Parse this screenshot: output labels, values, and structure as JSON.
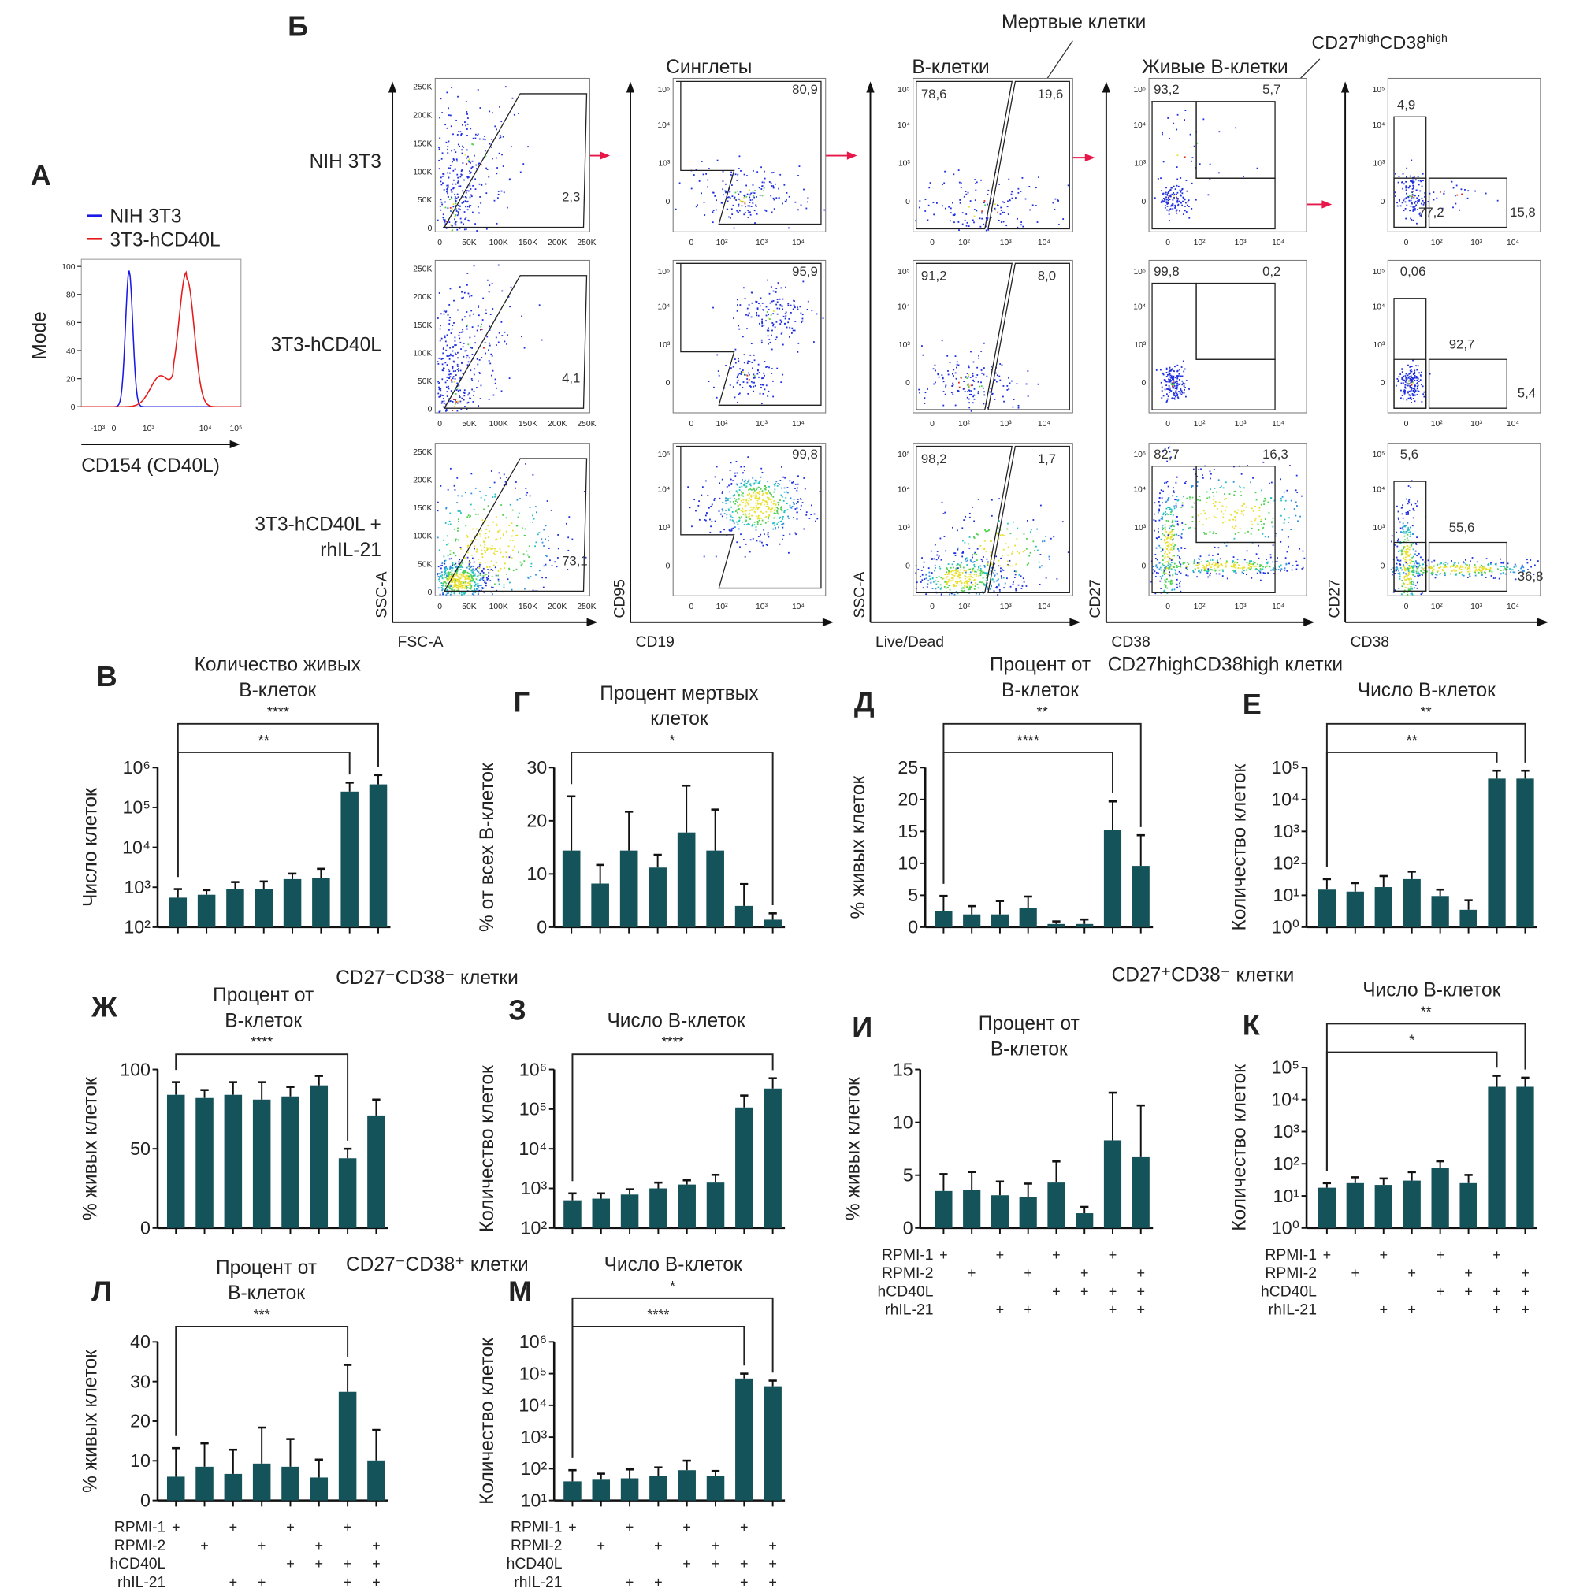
{
  "panel_letters": {
    "A": "А",
    "B": "Б",
    "V": "В",
    "G": "Г",
    "D": "Д",
    "E": "Е",
    "ZH": "Ж",
    "Z": "З",
    "I": "И",
    "K": "К",
    "L": "Л",
    "M": "М"
  },
  "histogram": {
    "type": "line",
    "ylabel": "Mode",
    "xlabel": "CD154 (CD40L)",
    "yticks": [
      "0",
      "20",
      "40",
      "60",
      "80",
      "100"
    ],
    "xticks": [
      "-10³",
      "0",
      "10³",
      "10⁴",
      "10⁵"
    ],
    "series": [
      {
        "name": "NIH 3T3",
        "color": "#1a1ae6",
        "peak_mode": 97
      },
      {
        "name": "3T3-hCD40L",
        "color": "#e61a1a",
        "peak_mode": 90
      }
    ]
  },
  "flow": {
    "row_labels": [
      "NIH 3T3",
      "3T3-hCD40L",
      "3T3-hCD40L +",
      "rhIL-21"
    ],
    "column_headers": [
      "Синглеты",
      "В-клетки",
      "Живые В-клетки",
      "CD27highCD38high"
    ],
    "dead_label": "Мертвые клетки",
    "cd27hi_parts": [
      "CD27",
      "high",
      "CD38",
      "high"
    ],
    "subset_labels": [
      [
        "CD27",
        "+",
        "CD38",
        "-"
      ],
      [
        "CD27",
        "-",
        "CD38",
        "-"
      ],
      [
        "CD27",
        "-",
        "CD38",
        "+"
      ]
    ],
    "axes": [
      {
        "x": "FSC-A",
        "y": "SSC-A"
      },
      {
        "x": "CD19",
        "y": "CD95"
      },
      {
        "x": "Live/Dead",
        "y": "SSC-A"
      },
      {
        "x": "CD38",
        "y": "CD27"
      },
      {
        "x": "CD38",
        "y": "CD27"
      }
    ],
    "scatter_ticks": [
      "0",
      "50K",
      "100K",
      "150K",
      "200K",
      "250K"
    ],
    "log_ticks": [
      "0",
      "10²",
      "10³",
      "10⁴",
      "10⁵"
    ],
    "percentages": [
      [
        [
          "2,3"
        ],
        [
          "80,9"
        ],
        [
          "78,6",
          "19,6"
        ],
        [
          "93,2",
          "5,7"
        ],
        [
          "4,9",
          "77,2",
          "15,8"
        ]
      ],
      [
        [
          "4,1"
        ],
        [
          "95,9"
        ],
        [
          "91,2",
          "8,0"
        ],
        [
          "99,8",
          "0,2"
        ],
        [
          "0,06",
          "92,7",
          "5,4"
        ]
      ],
      [
        [
          "73,1"
        ],
        [
          "99,8"
        ],
        [
          "98,2",
          "1,7"
        ],
        [
          "82,7",
          "16,3"
        ],
        [
          "5,6",
          "55,6",
          "36,8"
        ]
      ]
    ],
    "arrow_color": "#e8174a",
    "dot_color": "#1f2fe0"
  },
  "group_headers": {
    "cd27hi_cd38hi": "CD27highCD38high клетки",
    "cd27neg_cd38neg": "CD27⁻CD38⁻ клетки",
    "cd27pos_cd38neg": "CD27⁺CD38⁻ клетки",
    "cd27neg_cd38pos": "CD27⁻CD38⁺ клетки"
  },
  "conditions": {
    "rows": [
      "RPMI-1",
      "RPMI-2",
      "hCD40L",
      "rhIL-21"
    ],
    "plus": [
      [
        1,
        0,
        1,
        0,
        1,
        0,
        1,
        0
      ],
      [
        0,
        1,
        0,
        1,
        0,
        1,
        0,
        1
      ],
      [
        0,
        0,
        0,
        0,
        1,
        1,
        1,
        1
      ],
      [
        0,
        0,
        1,
        1,
        0,
        0,
        1,
        1
      ]
    ],
    "mark": "+"
  },
  "chart_data": [
    {
      "id": "V",
      "type": "bar",
      "title": [
        "Количество живых",
        "В-клеток"
      ],
      "ylabel": "Число клеток",
      "scale": "log",
      "ylim": [
        100,
        1000000
      ],
      "yticks": [
        "10²",
        "10³",
        "10⁴",
        "10⁵",
        "10⁶"
      ],
      "values": [
        550,
        650,
        900,
        900,
        1600,
        1700,
        250000,
        380000
      ],
      "error_upper": [
        900,
        850,
        1350,
        1400,
        2200,
        2900,
        420000,
        650000
      ],
      "significance": [
        {
          "from": 1,
          "to": 7,
          "label": "**"
        },
        {
          "from": 1,
          "to": 8,
          "label": "****"
        }
      ],
      "bar_color": "#15535a"
    },
    {
      "id": "G",
      "type": "bar",
      "title": [
        "Процент мертвых",
        "клеток"
      ],
      "ylabel": "% от всех В-клеток",
      "scale": "linear",
      "ylim": [
        0,
        30
      ],
      "yticks": [
        "0",
        "10",
        "20",
        "30"
      ],
      "values": [
        14.4,
        8.2,
        14.4,
        11.2,
        17.8,
        14.4,
        4.0,
        1.4
      ],
      "error_upper": [
        24.6,
        11.7,
        21.7,
        13.6,
        26.6,
        22.1,
        8.1,
        2.6
      ],
      "significance": [
        {
          "from": 1,
          "to": 8,
          "label": "*"
        }
      ],
      "bar_color": "#15535a"
    },
    {
      "id": "D",
      "type": "bar",
      "title": [
        "Процент от",
        "В-клеток"
      ],
      "ylabel": "% живых клеток",
      "scale": "linear",
      "ylim": [
        0,
        25
      ],
      "yticks": [
        "0",
        "5",
        "10",
        "15",
        "20",
        "25"
      ],
      "values": [
        2.5,
        2.0,
        2.0,
        3.0,
        0.5,
        0.5,
        15.2,
        9.6
      ],
      "error_upper": [
        4.9,
        3.3,
        4.1,
        4.8,
        0.9,
        1.2,
        19.7,
        14.4
      ],
      "significance": [
        {
          "from": 1,
          "to": 7,
          "label": "****"
        },
        {
          "from": 1,
          "to": 8,
          "label": "**"
        }
      ],
      "bar_color": "#15535a"
    },
    {
      "id": "E",
      "type": "bar",
      "title": [
        "Число В-клеток"
      ],
      "ylabel": "Количество клеток",
      "scale": "log",
      "ylim": [
        1,
        100000
      ],
      "yticks": [
        "10⁰",
        "10¹",
        "10²",
        "10³",
        "10⁴",
        "10⁵"
      ],
      "values": [
        15,
        13,
        18,
        32,
        9.5,
        3.5,
        45000,
        45000
      ],
      "error_upper": [
        32,
        24,
        40,
        55,
        15,
        7,
        80000,
        80000
      ],
      "significance": [
        {
          "from": 1,
          "to": 7,
          "label": "**"
        },
        {
          "from": 1,
          "to": 8,
          "label": "**"
        }
      ],
      "bar_color": "#15535a"
    },
    {
      "id": "ZH",
      "type": "bar",
      "title": [
        "Процент от",
        "В-клеток"
      ],
      "ylabel": "% живых клеток",
      "scale": "linear",
      "ylim": [
        0,
        100
      ],
      "yticks": [
        "0",
        "50",
        "100"
      ],
      "values": [
        84,
        82,
        84,
        81,
        83,
        90,
        44,
        71
      ],
      "error_upper": [
        92,
        87,
        92,
        92,
        89,
        96,
        50,
        81
      ],
      "significance": [
        {
          "from": 1,
          "to": 7,
          "label": "****"
        }
      ],
      "bar_color": "#15535a"
    },
    {
      "id": "Z",
      "type": "bar",
      "title": [
        "Число В-клеток"
      ],
      "ylabel": "Количество клеток",
      "scale": "log",
      "ylim": [
        100,
        1000000
      ],
      "yticks": [
        "10²",
        "10³",
        "10⁴",
        "10⁵",
        "10⁶"
      ],
      "values": [
        500,
        550,
        700,
        1000,
        1250,
        1400,
        110000,
        330000
      ],
      "error_upper": [
        750,
        750,
        950,
        1400,
        1600,
        2200,
        220000,
        600000
      ],
      "significance": [
        {
          "from": 1,
          "to": 8,
          "label": "****"
        }
      ],
      "bar_color": "#15535a"
    },
    {
      "id": "I",
      "type": "bar",
      "title": [
        "Процент от",
        "В-клеток"
      ],
      "ylabel": "% живых клеток",
      "scale": "linear",
      "ylim": [
        0,
        15
      ],
      "yticks": [
        "0",
        "5",
        "10",
        "15"
      ],
      "values": [
        3.5,
        3.6,
        3.1,
        2.9,
        4.3,
        1.4,
        8.3,
        6.7
      ],
      "error_upper": [
        5.1,
        5.3,
        4.4,
        4.2,
        6.3,
        2.0,
        12.8,
        11.6
      ],
      "significance": [],
      "bar_color": "#15535a"
    },
    {
      "id": "K",
      "type": "bar",
      "title": [
        "Число В-клеток"
      ],
      "ylabel": "Количество клеток",
      "scale": "log",
      "ylim": [
        1,
        100000
      ],
      "yticks": [
        "10⁰",
        "10¹",
        "10²",
        "10³",
        "10⁴",
        "10⁵"
      ],
      "values": [
        18,
        25,
        22,
        30,
        75,
        25,
        25000,
        25000
      ],
      "error_upper": [
        25,
        38,
        35,
        55,
        120,
        45,
        55000,
        48000
      ],
      "significance": [
        {
          "from": 1,
          "to": 7,
          "label": "*"
        },
        {
          "from": 1,
          "to": 8,
          "label": "**"
        }
      ],
      "bar_color": "#15535a"
    },
    {
      "id": "L",
      "type": "bar",
      "title": [
        "Процент от",
        "В-клеток"
      ],
      "ylabel": "% живых клеток",
      "scale": "linear",
      "ylim": [
        0,
        40
      ],
      "yticks": [
        "0",
        "10",
        "20",
        "30",
        "40"
      ],
      "values": [
        6.0,
        8.5,
        6.7,
        9.3,
        8.5,
        5.8,
        27.4,
        10.1
      ],
      "error_upper": [
        13.2,
        14.4,
        12.8,
        18.4,
        15.5,
        10.3,
        34.2,
        17.8
      ],
      "significance": [
        {
          "from": 1,
          "to": 7,
          "label": "***"
        }
      ],
      "bar_color": "#15535a"
    },
    {
      "id": "M",
      "type": "bar",
      "title": [
        "Число В-клеток"
      ],
      "ylabel": "Количество клеток",
      "scale": "log",
      "ylim": [
        10,
        1000000
      ],
      "yticks": [
        "10¹",
        "10²",
        "10³",
        "10⁴",
        "10⁵",
        "10⁶"
      ],
      "values": [
        40,
        45,
        50,
        60,
        90,
        60,
        70000,
        40000
      ],
      "error_upper": [
        90,
        70,
        95,
        110,
        180,
        85,
        100000,
        60000
      ],
      "significance": [
        {
          "from": 1,
          "to": 7,
          "label": "****"
        },
        {
          "from": 1,
          "to": 8,
          "label": "*"
        }
      ],
      "bar_color": "#15535a"
    }
  ]
}
